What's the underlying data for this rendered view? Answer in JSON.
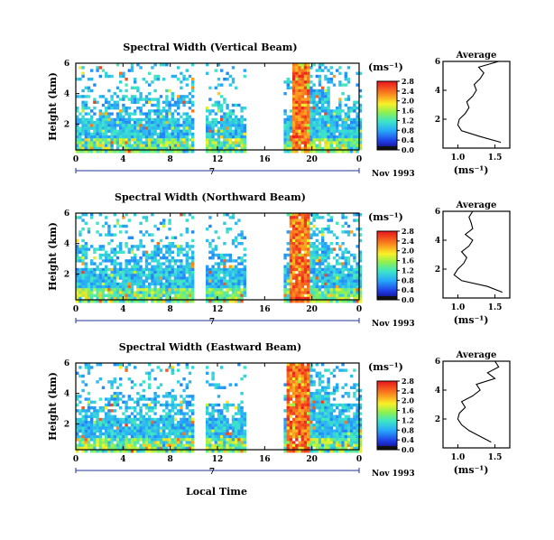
{
  "figure": {
    "x_axis_label": "Local Time",
    "colorbar_unit": "(ms⁻¹)",
    "avg_unit": "(ms⁻¹)",
    "avg_title": "Average",
    "date_label": "Nov 1993",
    "day_label": "7"
  },
  "chart_data": [
    {
      "type": "heatmap",
      "title": "Spectral Width (Vertical Beam)",
      "ylabel": "Height (km)",
      "xlabel": "",
      "x_ticks": [
        "0",
        "4",
        "8",
        "12",
        "16",
        "20",
        "0"
      ],
      "y_ticks": [
        "2",
        "4",
        "6"
      ],
      "xlim": [
        0,
        24
      ],
      "ylim": [
        0.3,
        6.0
      ],
      "colorbar": {
        "ticks": [
          "0.0",
          "0.4",
          "0.8",
          "1.2",
          "1.6",
          "2.0",
          "2.4",
          "2.8"
        ],
        "range": [
          0,
          3.0
        ]
      },
      "gaps_hours": [
        [
          9.9,
          11.0
        ],
        [
          14.4,
          17.4
        ]
      ],
      "strong_band_hours": [
        18.2,
        19.8
      ],
      "average_profile": {
        "title": "Average",
        "x_ticks": [
          "1.0",
          "1.5"
        ],
        "xlim": [
          0.8,
          1.7
        ],
        "y_ticks": [
          "2",
          "4",
          "6"
        ],
        "heights_km": [
          0.4,
          0.8,
          1.2,
          1.6,
          2.0,
          2.4,
          2.8,
          3.2,
          3.6,
          4.0,
          4.4,
          4.8,
          5.2,
          5.6,
          6.0
        ],
        "values": [
          1.58,
          1.3,
          1.05,
          1.0,
          1.02,
          1.1,
          1.15,
          1.12,
          1.2,
          1.25,
          1.22,
          1.3,
          1.35,
          1.28,
          1.55
        ]
      }
    },
    {
      "type": "heatmap",
      "title": "Spectral Width (Northward Beam)",
      "ylabel": "Height (km)",
      "xlabel": "",
      "x_ticks": [
        "0",
        "4",
        "8",
        "12",
        "16",
        "20",
        "0"
      ],
      "y_ticks": [
        "2",
        "4",
        "6"
      ],
      "xlim": [
        0,
        24
      ],
      "ylim": [
        0.3,
        6.0
      ],
      "colorbar": {
        "ticks": [
          "0.0",
          "0.4",
          "0.8",
          "1.2",
          "1.6",
          "2.0",
          "2.4",
          "2.8"
        ],
        "range": [
          0,
          3.0
        ]
      },
      "gaps_hours": [
        [
          9.9,
          11.0
        ],
        [
          14.4,
          17.4
        ]
      ],
      "strong_band_hours": [
        18.0,
        19.6
      ],
      "average_profile": {
        "title": "Average",
        "x_ticks": [
          "1.0",
          "1.5"
        ],
        "xlim": [
          0.8,
          1.7
        ],
        "y_ticks": [
          "2",
          "4",
          "6"
        ],
        "heights_km": [
          0.4,
          0.8,
          1.2,
          1.6,
          2.0,
          2.4,
          2.8,
          3.2,
          3.6,
          4.0,
          4.4,
          4.8,
          5.2,
          5.6,
          6.0
        ],
        "values": [
          1.6,
          1.4,
          1.05,
          0.95,
          1.0,
          1.08,
          1.12,
          1.05,
          1.15,
          1.2,
          1.1,
          1.2,
          1.18,
          1.15,
          1.2
        ]
      }
    },
    {
      "type": "heatmap",
      "title": "Spectral Width (Eastward Beam)",
      "ylabel": "Height (km)",
      "xlabel": "",
      "x_ticks": [
        "0",
        "4",
        "8",
        "12",
        "16",
        "20",
        "0"
      ],
      "y_ticks": [
        "2",
        "4",
        "6"
      ],
      "xlim": [
        0,
        24
      ],
      "ylim": [
        0.3,
        6.0
      ],
      "colorbar": {
        "ticks": [
          "0.0",
          "0.4",
          "0.8",
          "1.2",
          "1.6",
          "2.0",
          "2.4",
          "2.8"
        ],
        "range": [
          0,
          3.0
        ]
      },
      "gaps_hours": [
        [
          9.9,
          11.0
        ],
        [
          14.4,
          17.4
        ]
      ],
      "strong_band_hours": [
        17.8,
        19.6
      ],
      "average_profile": {
        "title": "Average",
        "x_ticks": [
          "1.0",
          "1.5"
        ],
        "xlim": [
          0.8,
          1.7
        ],
        "y_ticks": [
          "2",
          "4",
          "6"
        ],
        "heights_km": [
          0.4,
          0.8,
          1.2,
          1.6,
          2.0,
          2.4,
          2.8,
          3.2,
          3.6,
          4.0,
          4.4,
          4.8,
          5.2,
          5.6,
          6.0
        ],
        "values": [
          1.45,
          1.3,
          1.15,
          1.05,
          1.0,
          1.02,
          1.1,
          1.05,
          1.2,
          1.3,
          1.25,
          1.5,
          1.4,
          1.55,
          1.5
        ]
      }
    }
  ]
}
